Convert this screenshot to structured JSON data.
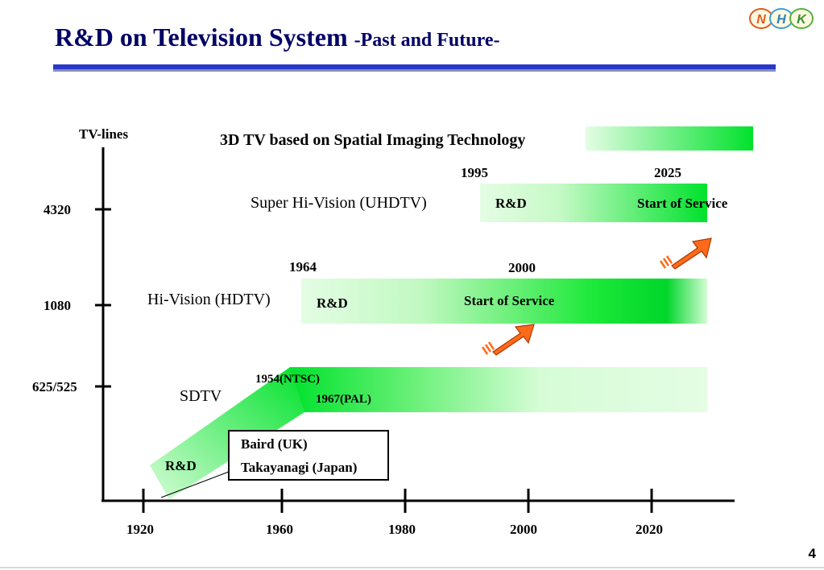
{
  "slide": {
    "title": "R&D on Television System ",
    "subtitle": "-Past and Future-",
    "page_number": "4",
    "logo_letters": [
      "N",
      "H",
      "K"
    ]
  },
  "axis": {
    "y_label": "TV-lines",
    "y_ticks": [
      "4320",
      "1080",
      "625/525"
    ],
    "x_ticks": [
      "1920",
      "1960",
      "1980",
      "2000",
      "2020"
    ]
  },
  "systems": {
    "threed": {
      "label": "3D TV based on Spatial Imaging Technology"
    },
    "shv": {
      "label": "Super Hi-Vision (UHDTV)",
      "start_year": "1995",
      "service_year": "2025",
      "rd": "R&D",
      "service": "Start of Service"
    },
    "hdtv": {
      "label": "Hi-Vision (HDTV)",
      "start_year": "1964",
      "service_year": "2000",
      "rd": "R&D",
      "service": "Start of Service"
    },
    "sdtv": {
      "label": "SDTV",
      "ntsc": "1954(NTSC)",
      "pal": "1967(PAL)",
      "rd": "R&D"
    }
  },
  "callout": {
    "line1": "Baird (UK)",
    "line2": "Takayanagi (Japan)"
  },
  "colors": {
    "title": "#000066",
    "rule": "#2a39c8",
    "green": "#00e000",
    "pale_green": "#d9fcd9",
    "arrow": "#ff6a1a"
  }
}
